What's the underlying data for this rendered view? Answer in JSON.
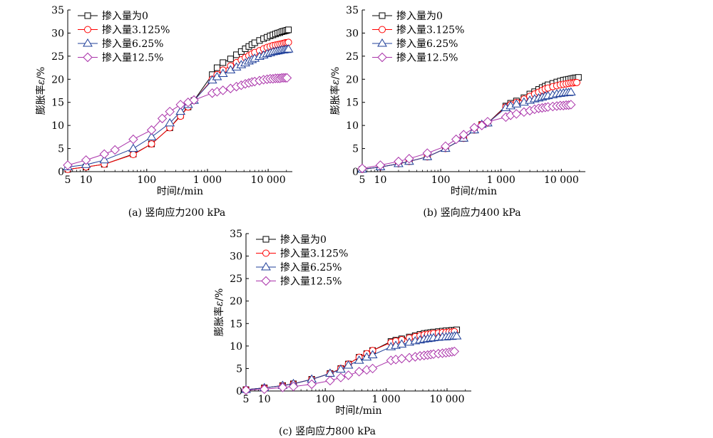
{
  "chart_data": [
    {
      "type": "line",
      "panel": "a",
      "caption": "(a) 竖向应力200 kPa",
      "xlabel_prefix": "时间",
      "xlabel_var": "t",
      "xlabel_suffix": "/min",
      "ylabel_prefix": "膨胀率",
      "ylabel_var": "ε",
      "ylabel_suffix": "/%",
      "xscale": "log",
      "xlim": [
        5,
        25000
      ],
      "ylim": [
        0,
        35
      ],
      "xticks": [
        5,
        10,
        100,
        1000,
        10000
      ],
      "xtick_labels": [
        "5",
        "10",
        "100",
        "1 000",
        "10 000"
      ],
      "yticks": [
        0,
        5,
        10,
        15,
        20,
        25,
        30,
        35
      ],
      "ytick_labels": [
        "0",
        "5",
        "10",
        "15",
        "20",
        "25",
        "30",
        "35"
      ],
      "legend_position": "top-left",
      "series": [
        {
          "name": "掺入量为0",
          "marker": "square",
          "color": "#000000",
          "x": [
            5,
            10,
            20,
            60,
            120,
            240,
            360,
            480,
            600,
            1200,
            1440,
            1800,
            2400,
            3000,
            3600,
            4200,
            4800,
            5400,
            6000,
            7200,
            8400,
            9600,
            10800,
            12000,
            13200,
            14400,
            15600,
            16800,
            18000,
            19200,
            20400,
            21600
          ],
          "y": [
            0.5,
            1.0,
            1.6,
            3.8,
            6.0,
            9.5,
            12.2,
            14.0,
            15.4,
            21.0,
            22.5,
            23.6,
            24.4,
            25.3,
            26.0,
            26.6,
            27.1,
            27.5,
            27.9,
            28.4,
            28.8,
            29.1,
            29.4,
            29.6,
            29.8,
            30.0,
            30.1,
            30.3,
            30.4,
            30.5,
            30.6,
            30.7
          ]
        },
        {
          "name": "掺入量3.125%",
          "marker": "circle",
          "color": "#ff0000",
          "x": [
            5,
            10,
            20,
            60,
            120,
            240,
            360,
            480,
            600,
            1200,
            1440,
            1800,
            2400,
            3000,
            3600,
            4200,
            4800,
            5400,
            6000,
            7200,
            8400,
            9600,
            10800,
            12000,
            13200,
            14400,
            15600,
            16800,
            18000,
            19200,
            20400,
            21600
          ],
          "y": [
            0.5,
            1.0,
            1.6,
            3.7,
            6.0,
            9.5,
            12.0,
            14.0,
            15.4,
            20.0,
            21.0,
            22.0,
            22.9,
            23.6,
            24.2,
            24.7,
            25.1,
            25.5,
            25.8,
            26.2,
            26.6,
            26.9,
            27.1,
            27.3,
            27.4,
            27.5,
            27.6,
            27.7,
            27.8,
            27.9,
            27.9,
            28.0
          ]
        },
        {
          "name": "掺入量6.25%",
          "marker": "triangle",
          "color": "#1f3f99",
          "x": [
            5,
            10,
            20,
            60,
            120,
            240,
            360,
            480,
            600,
            1200,
            1440,
            1800,
            2400,
            3000,
            3600,
            4200,
            4800,
            5400,
            6000,
            7200,
            8400,
            9600,
            10800,
            12000,
            13200,
            14400,
            15600,
            16800,
            18000,
            19200,
            20400,
            21600
          ],
          "y": [
            1.0,
            1.5,
            2.5,
            5.0,
            7.5,
            10.5,
            13.0,
            14.5,
            15.4,
            19.8,
            20.5,
            21.2,
            22.0,
            22.6,
            23.1,
            23.5,
            23.9,
            24.2,
            24.5,
            24.9,
            25.2,
            25.5,
            25.7,
            25.9,
            26.0,
            26.1,
            26.2,
            26.3,
            26.3,
            26.4,
            26.4,
            26.5
          ]
        },
        {
          "name": "掺入量12.5%",
          "marker": "diamond",
          "color": "#aa33aa",
          "x": [
            5,
            10,
            20,
            30,
            60,
            120,
            180,
            240,
            360,
            480,
            600,
            1200,
            1440,
            1800,
            2400,
            3000,
            3600,
            4200,
            4800,
            5400,
            6000,
            7200,
            8400,
            9600,
            10800,
            12000,
            13200,
            14400,
            15600,
            16800,
            18000,
            19200,
            20400
          ],
          "y": [
            1.4,
            2.5,
            3.8,
            4.7,
            7.0,
            9.0,
            11.5,
            13.0,
            14.5,
            15.0,
            15.5,
            17.0,
            17.3,
            17.6,
            18.0,
            18.4,
            18.7,
            19.0,
            19.2,
            19.4,
            19.5,
            19.7,
            19.9,
            20.0,
            20.1,
            20.1,
            20.2,
            20.2,
            20.2,
            20.3,
            20.3,
            20.3,
            20.3
          ]
        }
      ]
    },
    {
      "type": "line",
      "panel": "b",
      "caption": "(b) 竖向应力400 kPa",
      "xlabel_prefix": "时间",
      "xlabel_var": "t",
      "xlabel_suffix": "/min",
      "ylabel_prefix": "膨胀率",
      "ylabel_var": "ε",
      "ylabel_suffix": "/%",
      "xscale": "log",
      "xlim": [
        5,
        25000
      ],
      "ylim": [
        0,
        35
      ],
      "xticks": [
        5,
        10,
        100,
        1000,
        10000
      ],
      "xtick_labels": [
        "5",
        "10",
        "100",
        "1 000",
        "10 000"
      ],
      "yticks": [
        0,
        5,
        10,
        15,
        20,
        25,
        30,
        35
      ],
      "ytick_labels": [
        "0",
        "5",
        "10",
        "15",
        "20",
        "25",
        "30",
        "35"
      ],
      "legend_position": "top-left",
      "series": [
        {
          "name": "掺入量为0",
          "marker": "square",
          "color": "#000000",
          "x": [
            5,
            10,
            20,
            30,
            60,
            120,
            240,
            360,
            480,
            600,
            1200,
            1440,
            1800,
            2400,
            3000,
            3600,
            4200,
            4800,
            5400,
            6000,
            7200,
            8400,
            9600,
            10800,
            12000,
            13200,
            14400,
            15600,
            16800,
            18000,
            19200
          ],
          "y": [
            0.5,
            1.0,
            1.7,
            2.2,
            3.2,
            5.0,
            7.2,
            9.0,
            10.2,
            10.5,
            14.2,
            14.8,
            15.3,
            16.0,
            16.8,
            17.3,
            17.8,
            18.2,
            18.5,
            18.8,
            19.1,
            19.4,
            19.6,
            19.8,
            19.9,
            20.0,
            20.1,
            20.2,
            20.3,
            20.3,
            20.4
          ]
        },
        {
          "name": "掺入量3.125%",
          "marker": "circle",
          "color": "#ff0000",
          "x": [
            5,
            10,
            20,
            30,
            60,
            120,
            240,
            360,
            480,
            600,
            1200,
            1440,
            1800,
            2400,
            3000,
            3600,
            4200,
            4800,
            5400,
            6000,
            7200,
            8400,
            9600,
            10800,
            12000,
            13200,
            14400,
            15600,
            16800,
            18000
          ],
          "y": [
            0.5,
            1.0,
            1.7,
            2.2,
            3.2,
            5.0,
            7.2,
            9.0,
            10.2,
            10.5,
            14.0,
            14.5,
            15.0,
            15.7,
            16.3,
            16.8,
            17.2,
            17.6,
            17.9,
            18.1,
            18.4,
            18.6,
            18.8,
            18.9,
            19.0,
            19.1,
            19.2,
            19.2,
            19.3,
            19.3
          ]
        },
        {
          "name": "掺入量6.25%",
          "marker": "triangle",
          "color": "#1f3f99",
          "x": [
            5,
            10,
            20,
            30,
            60,
            120,
            240,
            360,
            480,
            600,
            1200,
            1440,
            1800,
            2400,
            3000,
            3600,
            4200,
            4800,
            5400,
            6000,
            7200,
            8400,
            9600,
            10800,
            12000,
            13200,
            14400
          ],
          "y": [
            0.5,
            1.0,
            1.7,
            2.2,
            3.2,
            5.0,
            7.2,
            9.0,
            10.2,
            10.5,
            13.8,
            14.2,
            14.6,
            15.0,
            15.4,
            15.7,
            15.9,
            16.1,
            16.3,
            16.4,
            16.6,
            16.8,
            16.9,
            17.0,
            17.1,
            17.1,
            17.2
          ]
        },
        {
          "name": "掺入量12.5%",
          "marker": "diamond",
          "color": "#aa33aa",
          "x": [
            5,
            10,
            20,
            30,
            60,
            120,
            180,
            240,
            360,
            480,
            600,
            1200,
            1440,
            1800,
            2400,
            3000,
            3600,
            4200,
            4800,
            5400,
            6000,
            7200,
            8400,
            9600,
            10800,
            12000,
            13200,
            14400
          ],
          "y": [
            0.7,
            1.4,
            2.2,
            2.8,
            4.0,
            5.5,
            7.0,
            8.0,
            9.5,
            10.0,
            10.8,
            11.8,
            12.2,
            12.5,
            12.9,
            13.2,
            13.5,
            13.7,
            13.8,
            13.9,
            14.0,
            14.1,
            14.2,
            14.3,
            14.3,
            14.4,
            14.4,
            14.5
          ]
        }
      ]
    },
    {
      "type": "line",
      "panel": "c",
      "caption": "(c) 竖向应力800 kPa",
      "xlabel_prefix": "时间",
      "xlabel_var": "t",
      "xlabel_suffix": "/min",
      "ylabel_prefix": "膨胀率",
      "ylabel_var": "ε",
      "ylabel_suffix": "/%",
      "xscale": "log",
      "xlim": [
        5,
        25000
      ],
      "ylim": [
        0,
        35
      ],
      "xticks": [
        5,
        10,
        100,
        1000,
        10000
      ],
      "xtick_labels": [
        "5",
        "10",
        "100",
        "1 000",
        "10 000"
      ],
      "yticks": [
        0,
        5,
        10,
        15,
        20,
        25,
        30,
        35
      ],
      "ytick_labels": [
        "0",
        "5",
        "10",
        "15",
        "20",
        "25",
        "30",
        "35"
      ],
      "legend_position": "top-left",
      "series": [
        {
          "name": "掺入量为0",
          "marker": "square",
          "color": "#000000",
          "x": [
            5,
            10,
            20,
            30,
            60,
            120,
            180,
            240,
            360,
            480,
            600,
            1200,
            1440,
            1800,
            2400,
            3000,
            3600,
            4200,
            4800,
            5400,
            6000,
            7200,
            8400,
            9600,
            10800,
            12000,
            13200,
            14400
          ],
          "y": [
            0.3,
            0.7,
            1.2,
            1.6,
            2.6,
            3.9,
            5.0,
            6.0,
            7.5,
            8.3,
            9.0,
            11.0,
            11.3,
            11.6,
            12.0,
            12.3,
            12.6,
            12.8,
            12.9,
            13.0,
            13.1,
            13.2,
            13.3,
            13.4,
            13.4,
            13.5,
            13.5,
            13.6
          ]
        },
        {
          "name": "掺入量3.125%",
          "marker": "circle",
          "color": "#ff0000",
          "x": [
            5,
            10,
            20,
            30,
            60,
            120,
            180,
            240,
            360,
            480,
            600,
            1200,
            1440,
            1800,
            2400,
            3000,
            3600,
            4200,
            4800,
            5400,
            6000,
            7200,
            8400,
            9600,
            10800,
            12000,
            13200
          ],
          "y": [
            0.3,
            0.7,
            1.2,
            1.6,
            2.6,
            3.9,
            5.0,
            6.0,
            7.5,
            8.3,
            9.0,
            10.8,
            11.1,
            11.4,
            11.8,
            12.1,
            12.3,
            12.5,
            12.6,
            12.7,
            12.8,
            12.9,
            13.0,
            13.0,
            13.1,
            13.1,
            13.2
          ]
        },
        {
          "name": "掺入量6.25%",
          "marker": "triangle",
          "color": "#1f3f99",
          "x": [
            5,
            10,
            20,
            30,
            60,
            120,
            180,
            240,
            360,
            480,
            600,
            1200,
            1440,
            1800,
            2400,
            3000,
            3600,
            4200,
            4800,
            5400,
            6000,
            7200,
            8400,
            9600,
            10800,
            12000,
            13200,
            14400
          ],
          "y": [
            0.3,
            0.7,
            1.2,
            1.6,
            2.6,
            3.9,
            4.8,
            5.7,
            6.8,
            7.5,
            8.0,
            9.8,
            10.1,
            10.4,
            10.8,
            11.1,
            11.3,
            11.5,
            11.6,
            11.7,
            11.8,
            11.9,
            12.0,
            12.0,
            12.1,
            12.1,
            12.2,
            12.2
          ]
        },
        {
          "name": "掺入量12.5%",
          "marker": "diamond",
          "color": "#aa33aa",
          "x": [
            5,
            10,
            20,
            30,
            60,
            120,
            180,
            240,
            360,
            480,
            600,
            1200,
            1440,
            1800,
            2400,
            3000,
            3600,
            4200,
            4800,
            5400,
            6000,
            7200,
            8400,
            9600,
            10800,
            12000,
            13200
          ],
          "y": [
            0.2,
            0.4,
            0.8,
            1.0,
            1.5,
            2.3,
            3.0,
            3.5,
            4.3,
            4.7,
            5.0,
            6.8,
            7.0,
            7.2,
            7.4,
            7.6,
            7.8,
            7.9,
            8.0,
            8.1,
            8.2,
            8.3,
            8.4,
            8.5,
            8.6,
            8.7,
            8.8
          ]
        }
      ]
    }
  ]
}
